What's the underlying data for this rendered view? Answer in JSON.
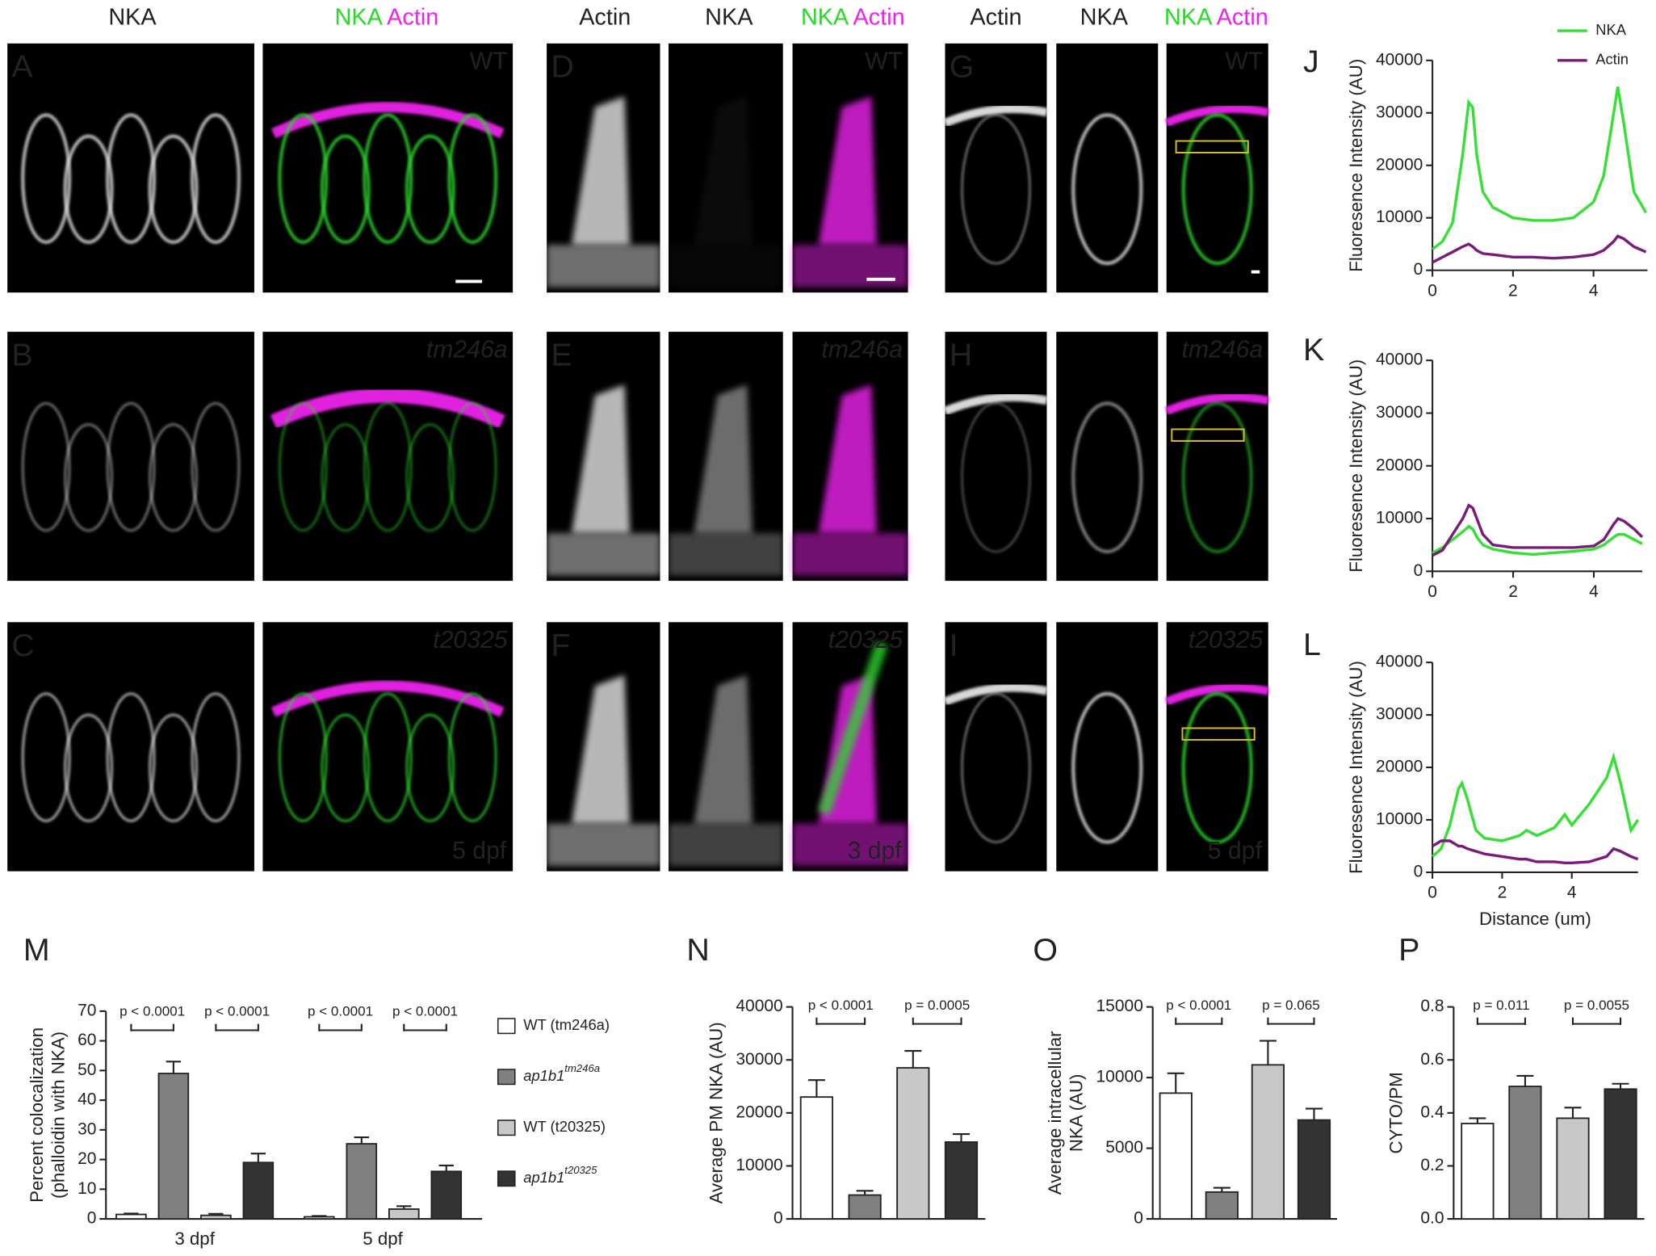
{
  "image_panels": {
    "column_headers": [
      [
        "NKA"
      ],
      [
        "NKA",
        "Actin"
      ],
      [
        "Actin"
      ],
      [
        "NKA"
      ],
      [
        "NKA",
        "Actin"
      ],
      [
        "Actin"
      ],
      [
        "NKA"
      ],
      [
        "NKA",
        "Actin"
      ]
    ],
    "panel_letters": [
      "A",
      "B",
      "C",
      "D",
      "E",
      "F",
      "G",
      "H",
      "I"
    ],
    "genotype_labels": [
      "WT",
      "tm246a",
      "t20325"
    ],
    "stage_labels": [
      "5 dpf",
      "3 dpf",
      "5 dpf"
    ]
  },
  "chart_data": [
    {
      "type": "line",
      "panel": "J",
      "ylabel": "Fluoresence Intensity (AU)",
      "x": [
        0,
        0.25,
        0.5,
        0.75,
        0.9,
        1.0,
        1.1,
        1.25,
        1.5,
        2,
        2.5,
        3,
        3.5,
        4,
        4.25,
        4.5,
        4.6,
        4.75,
        5,
        5.3
      ],
      "series": [
        {
          "name": "NKA",
          "color": "#33e033",
          "values": [
            4000,
            5500,
            9000,
            22000,
            32000,
            31000,
            22000,
            15000,
            12000,
            10000,
            9500,
            9500,
            10000,
            13000,
            18000,
            30000,
            35000,
            28000,
            15000,
            11000
          ]
        },
        {
          "name": "Actin",
          "color": "#7a1a7a",
          "values": [
            1500,
            2500,
            3500,
            4500,
            5000,
            4500,
            3800,
            3200,
            3000,
            2500,
            2500,
            2300,
            2500,
            3000,
            3800,
            5500,
            6500,
            6000,
            4500,
            3500
          ]
        }
      ],
      "xlim": [
        0,
        5.34
      ],
      "xticks": [
        0,
        2,
        4
      ],
      "ylim": [
        0,
        40000
      ],
      "yticks": [
        0,
        10000,
        20000,
        30000,
        40000
      ],
      "legend": "upper right"
    },
    {
      "type": "line",
      "panel": "K",
      "ylabel": "Fluoresence Intensity (AU)",
      "x": [
        0,
        0.25,
        0.5,
        0.75,
        0.9,
        1.0,
        1.1,
        1.25,
        1.5,
        2,
        2.5,
        3,
        3.5,
        4,
        4.25,
        4.5,
        4.6,
        4.75,
        5,
        5.2
      ],
      "series": [
        {
          "color": "#33e033",
          "values": [
            3500,
            4500,
            6000,
            7500,
            8500,
            8000,
            6500,
            5000,
            4200,
            3500,
            3200,
            3500,
            3800,
            4200,
            5000,
            6500,
            7000,
            7000,
            6000,
            5200
          ]
        },
        {
          "color": "#7a1a7a",
          "values": [
            3000,
            4000,
            7000,
            10000,
            12500,
            12000,
            10000,
            7000,
            5000,
            4500,
            4500,
            4500,
            4500,
            4800,
            6000,
            9000,
            10000,
            9500,
            8000,
            6500
          ]
        }
      ],
      "xlim": [
        0,
        5.2
      ],
      "xticks": [
        0,
        2,
        4
      ],
      "ylim": [
        0,
        40000
      ],
      "yticks": [
        0,
        10000,
        20000,
        30000,
        40000
      ]
    },
    {
      "type": "line",
      "panel": "L",
      "ylabel": "Fluoresence Intensity (AU)",
      "xlabel": "Distance (um)",
      "x": [
        0,
        0.25,
        0.5,
        0.75,
        0.85,
        1.0,
        1.25,
        1.5,
        2,
        2.5,
        2.7,
        3,
        3.5,
        3.8,
        4,
        4.5,
        5,
        5.2,
        5.4,
        5.7,
        5.9
      ],
      "series": [
        {
          "color": "#33e033",
          "values": [
            3000,
            4500,
            9000,
            16000,
            17000,
            14000,
            8000,
            6500,
            6000,
            7000,
            8000,
            7000,
            8500,
            11000,
            9000,
            13000,
            18000,
            22000,
            17000,
            8000,
            10000
          ]
        },
        {
          "color": "#7a1a7a",
          "values": [
            5000,
            6000,
            6000,
            5000,
            5000,
            4500,
            4000,
            3500,
            3000,
            2500,
            2500,
            2000,
            2000,
            1800,
            1800,
            2000,
            3000,
            4500,
            4000,
            3000,
            2500
          ]
        }
      ],
      "xlim": [
        0,
        5.9
      ],
      "xticks": [
        0,
        2,
        4
      ],
      "ylim": [
        0,
        40000
      ],
      "yticks": [
        0,
        10000,
        20000,
        30000,
        40000
      ]
    },
    {
      "type": "grouped_bar",
      "panel": "M",
      "ylabel": [
        "Percent colocalization",
        "(phalloidin with NKA)"
      ],
      "categories": [
        "3 dpf",
        "5 dpf"
      ],
      "series": [
        {
          "name": "WT (tm246a)",
          "color": "#ffffff",
          "values": [
            1.5,
            0.7
          ],
          "errors": [
            0.3,
            0.3
          ]
        },
        {
          "name": "ap1b1",
          "superscript": "tm246a",
          "color": "#808080",
          "values": [
            49,
            25.3
          ],
          "errors": [
            4,
            2.2
          ]
        },
        {
          "name": "WT (t20325)",
          "color": "#c8c8c8",
          "values": [
            1.2,
            3.3
          ],
          "errors": [
            0.5,
            1
          ]
        },
        {
          "name": "ap1b1",
          "superscript": "t20325",
          "color": "#333333",
          "values": [
            19,
            16
          ],
          "errors": [
            3,
            2
          ]
        }
      ],
      "annotations": [
        "p < 0.0001",
        "p < 0.0001",
        "p < 0.0001",
        "p < 0.0001"
      ],
      "ylim": [
        0,
        70
      ],
      "yticks": [
        0,
        10,
        20,
        30,
        40,
        50,
        60,
        70
      ],
      "legend": "right"
    },
    {
      "type": "bar",
      "panel": "N",
      "ylabel": [
        "Average PM NKA (AU)"
      ],
      "values": [
        23000,
        4500,
        28500,
        14500
      ],
      "errors": [
        3200,
        800,
        3200,
        1500
      ],
      "colors": [
        "#ffffff",
        "#808080",
        "#c8c8c8",
        "#333333"
      ],
      "annotations": [
        "p < 0.0001",
        "p = 0.0005"
      ],
      "ylim": [
        0,
        40000
      ],
      "yticks": [
        0,
        10000,
        20000,
        30000,
        40000
      ]
    },
    {
      "type": "bar",
      "panel": "O",
      "ylabel": [
        "Average intracellular",
        "NKA (AU)"
      ],
      "values": [
        8900,
        1900,
        10900,
        7000
      ],
      "errors": [
        1400,
        300,
        1700,
        800
      ],
      "colors": [
        "#ffffff",
        "#808080",
        "#c8c8c8",
        "#333333"
      ],
      "annotations": [
        "p < 0.0001",
        "p = 0.065"
      ],
      "ylim": [
        0,
        15000
      ],
      "yticks": [
        0,
        5000,
        10000,
        15000
      ]
    },
    {
      "type": "bar",
      "panel": "P",
      "ylabel": [
        "CYTO/PM"
      ],
      "values": [
        0.36,
        0.5,
        0.38,
        0.49
      ],
      "errors": [
        0.02,
        0.04,
        0.04,
        0.02
      ],
      "colors": [
        "#ffffff",
        "#808080",
        "#c8c8c8",
        "#333333"
      ],
      "annotations": [
        "p = 0.011",
        "p = 0.0055"
      ],
      "ylim": [
        0,
        0.8
      ],
      "yticks": [
        {
          "value": 0,
          "label": "0.0"
        },
        0.2,
        0.4,
        0.6,
        0.8
      ]
    }
  ]
}
